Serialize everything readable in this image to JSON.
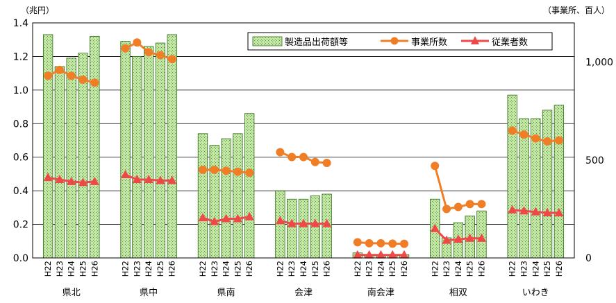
{
  "chart_data": {
    "type": "bar",
    "title": "",
    "left_unit": "（兆円）",
    "right_unit": "（事業所、百人）",
    "ylim_left": [
      0,
      1.4
    ],
    "ylim_right": [
      0,
      1200
    ],
    "left_ticks": [
      "0.0",
      "0.2",
      "0.4",
      "0.6",
      "0.8",
      "1.0",
      "1.2",
      "1.4"
    ],
    "right_ticks": [
      {
        "value": 0,
        "label": "0"
      },
      {
        "value": 500,
        "label": "500"
      },
      {
        "value": 1000,
        "label": "1,000"
      }
    ],
    "years": [
      "H22",
      "H23",
      "H24",
      "H25",
      "H26"
    ],
    "regions": [
      "県北",
      "県中",
      "県南",
      "会津",
      "南会津",
      "相双",
      "いわき"
    ],
    "legend": {
      "position": "top-right",
      "entries": [
        "製造品出荷額等",
        "事業所数",
        "従業者数"
      ]
    },
    "colors": {
      "bar_fill": "#c6e5a8",
      "bar_dot": "#4f9f2c",
      "bar_border": "#2d6b16",
      "establishments": "#f07e26",
      "employees": "#ef4848"
    },
    "series": [
      {
        "name": "製造品出荷額等",
        "axis": "left",
        "values": [
          [
            1.33,
            1.14,
            1.19,
            1.22,
            1.32
          ],
          [
            1.29,
            1.2,
            1.26,
            1.28,
            1.33
          ],
          [
            0.74,
            0.67,
            0.71,
            0.74,
            0.86
          ],
          [
            0.4,
            0.35,
            0.35,
            0.37,
            0.38
          ],
          [
            0.03,
            0.02,
            0.02,
            0.02,
            0.02
          ],
          [
            0.35,
            0.12,
            0.21,
            0.25,
            0.28
          ],
          [
            0.97,
            0.83,
            0.83,
            0.88,
            0.91
          ]
        ]
      },
      {
        "name": "事業所数",
        "axis": "right",
        "values": [
          [
            930,
            960,
            930,
            910,
            895
          ],
          [
            1070,
            1100,
            1050,
            1035,
            1015
          ],
          [
            450,
            450,
            445,
            440,
            435
          ],
          [
            540,
            515,
            515,
            490,
            485
          ],
          [
            80,
            75,
            75,
            73,
            72
          ],
          [
            470,
            250,
            260,
            275,
            275
          ],
          [
            650,
            630,
            610,
            595,
            600
          ]
        ]
      },
      {
        "name": "従業者数",
        "axis": "right",
        "values": [
          [
            410,
            400,
            390,
            385,
            390
          ],
          [
            425,
            400,
            400,
            395,
            395
          ],
          [
            205,
            185,
            200,
            200,
            210
          ],
          [
            190,
            175,
            175,
            175,
            175
          ],
          [
            15,
            15,
            15,
            15,
            15
          ],
          [
            150,
            90,
            95,
            100,
            100
          ],
          [
            245,
            240,
            235,
            230,
            230
          ]
        ]
      }
    ]
  }
}
